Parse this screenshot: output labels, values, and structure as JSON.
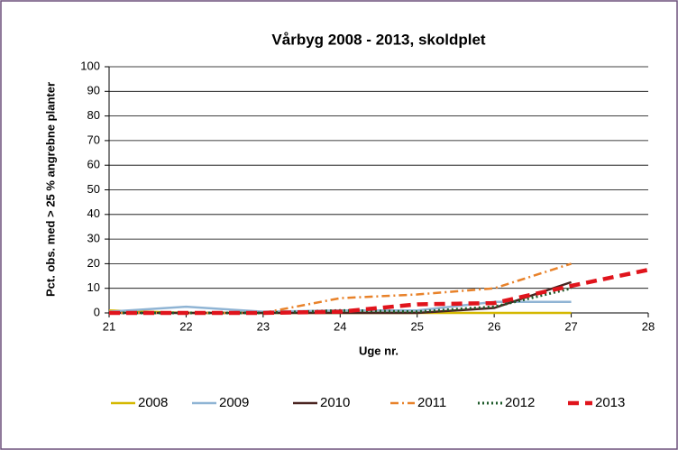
{
  "chart_data": {
    "type": "line",
    "title": "Vårbyg 2008 - 2013, skoldplet",
    "xlabel": "Uge nr.",
    "ylabel": "Pct. obs. med > 25 % angrebne planter",
    "x": [
      21,
      22,
      23,
      24,
      25,
      26,
      27,
      28
    ],
    "xlim": [
      21,
      28
    ],
    "xticks": [
      21,
      22,
      23,
      24,
      25,
      26,
      27,
      28
    ],
    "ylim": [
      0,
      100
    ],
    "yticks": [
      0,
      10,
      20,
      30,
      40,
      50,
      60,
      70,
      80,
      90,
      100
    ],
    "grid": true,
    "legend": "bottom",
    "series": [
      {
        "name": "2008",
        "color": "#d4b800",
        "style": "solid",
        "values": [
          1,
          0,
          0,
          0,
          0,
          0,
          0,
          null
        ]
      },
      {
        "name": "2009",
        "color": "#8fb4d4",
        "style": "solid",
        "values": [
          0.5,
          2.5,
          0.5,
          1,
          1,
          4.5,
          4.5,
          null
        ]
      },
      {
        "name": "2010",
        "color": "#4a2420",
        "style": "solid",
        "values": [
          0,
          0,
          0,
          0,
          0,
          2,
          12.5,
          null
        ]
      },
      {
        "name": "2011",
        "color": "#e8822a",
        "style": "dashdot",
        "values": [
          0,
          0,
          0,
          6,
          7.5,
          10,
          20,
          null
        ]
      },
      {
        "name": "2012",
        "color": "#1e5a2a",
        "style": "dotted",
        "values": [
          0,
          0,
          0,
          1,
          0.5,
          2.5,
          10,
          null
        ]
      },
      {
        "name": "2013",
        "color": "#e0141c",
        "style": "dashed",
        "values": [
          0,
          0,
          0,
          0.5,
          3.5,
          4,
          11,
          17.5
        ]
      }
    ]
  }
}
